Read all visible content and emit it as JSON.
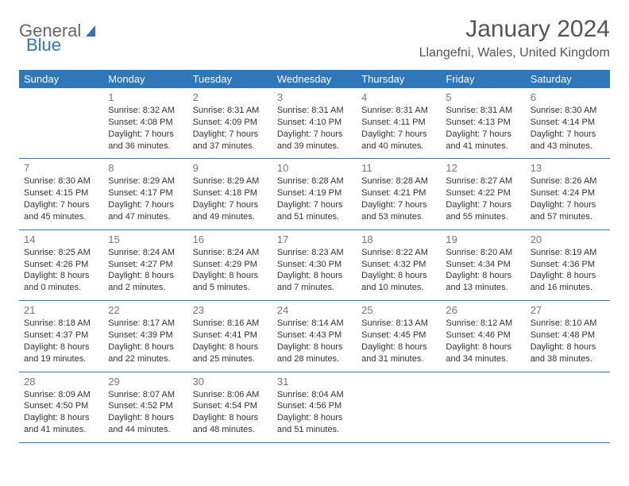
{
  "logo": {
    "text1": "General",
    "text2": "Blue"
  },
  "title": "January 2024",
  "location": "Llangefni, Wales, United Kingdom",
  "colors": {
    "header_bg": "#2e77b8",
    "text": "#333333",
    "muted": "#777777"
  },
  "dayNames": [
    "Sunday",
    "Monday",
    "Tuesday",
    "Wednesday",
    "Thursday",
    "Friday",
    "Saturday"
  ],
  "weeks": [
    [
      null,
      {
        "n": "1",
        "sr": "Sunrise: 8:32 AM",
        "ss": "Sunset: 4:08 PM",
        "dl1": "Daylight: 7 hours",
        "dl2": "and 36 minutes."
      },
      {
        "n": "2",
        "sr": "Sunrise: 8:31 AM",
        "ss": "Sunset: 4:09 PM",
        "dl1": "Daylight: 7 hours",
        "dl2": "and 37 minutes."
      },
      {
        "n": "3",
        "sr": "Sunrise: 8:31 AM",
        "ss": "Sunset: 4:10 PM",
        "dl1": "Daylight: 7 hours",
        "dl2": "and 39 minutes."
      },
      {
        "n": "4",
        "sr": "Sunrise: 8:31 AM",
        "ss": "Sunset: 4:11 PM",
        "dl1": "Daylight: 7 hours",
        "dl2": "and 40 minutes."
      },
      {
        "n": "5",
        "sr": "Sunrise: 8:31 AM",
        "ss": "Sunset: 4:13 PM",
        "dl1": "Daylight: 7 hours",
        "dl2": "and 41 minutes."
      },
      {
        "n": "6",
        "sr": "Sunrise: 8:30 AM",
        "ss": "Sunset: 4:14 PM",
        "dl1": "Daylight: 7 hours",
        "dl2": "and 43 minutes."
      }
    ],
    [
      {
        "n": "7",
        "sr": "Sunrise: 8:30 AM",
        "ss": "Sunset: 4:15 PM",
        "dl1": "Daylight: 7 hours",
        "dl2": "and 45 minutes."
      },
      {
        "n": "8",
        "sr": "Sunrise: 8:29 AM",
        "ss": "Sunset: 4:17 PM",
        "dl1": "Daylight: 7 hours",
        "dl2": "and 47 minutes."
      },
      {
        "n": "9",
        "sr": "Sunrise: 8:29 AM",
        "ss": "Sunset: 4:18 PM",
        "dl1": "Daylight: 7 hours",
        "dl2": "and 49 minutes."
      },
      {
        "n": "10",
        "sr": "Sunrise: 8:28 AM",
        "ss": "Sunset: 4:19 PM",
        "dl1": "Daylight: 7 hours",
        "dl2": "and 51 minutes."
      },
      {
        "n": "11",
        "sr": "Sunrise: 8:28 AM",
        "ss": "Sunset: 4:21 PM",
        "dl1": "Daylight: 7 hours",
        "dl2": "and 53 minutes."
      },
      {
        "n": "12",
        "sr": "Sunrise: 8:27 AM",
        "ss": "Sunset: 4:22 PM",
        "dl1": "Daylight: 7 hours",
        "dl2": "and 55 minutes."
      },
      {
        "n": "13",
        "sr": "Sunrise: 8:26 AM",
        "ss": "Sunset: 4:24 PM",
        "dl1": "Daylight: 7 hours",
        "dl2": "and 57 minutes."
      }
    ],
    [
      {
        "n": "14",
        "sr": "Sunrise: 8:25 AM",
        "ss": "Sunset: 4:26 PM",
        "dl1": "Daylight: 8 hours",
        "dl2": "and 0 minutes."
      },
      {
        "n": "15",
        "sr": "Sunrise: 8:24 AM",
        "ss": "Sunset: 4:27 PM",
        "dl1": "Daylight: 8 hours",
        "dl2": "and 2 minutes."
      },
      {
        "n": "16",
        "sr": "Sunrise: 8:24 AM",
        "ss": "Sunset: 4:29 PM",
        "dl1": "Daylight: 8 hours",
        "dl2": "and 5 minutes."
      },
      {
        "n": "17",
        "sr": "Sunrise: 8:23 AM",
        "ss": "Sunset: 4:30 PM",
        "dl1": "Daylight: 8 hours",
        "dl2": "and 7 minutes."
      },
      {
        "n": "18",
        "sr": "Sunrise: 8:22 AM",
        "ss": "Sunset: 4:32 PM",
        "dl1": "Daylight: 8 hours",
        "dl2": "and 10 minutes."
      },
      {
        "n": "19",
        "sr": "Sunrise: 8:20 AM",
        "ss": "Sunset: 4:34 PM",
        "dl1": "Daylight: 8 hours",
        "dl2": "and 13 minutes."
      },
      {
        "n": "20",
        "sr": "Sunrise: 8:19 AM",
        "ss": "Sunset: 4:36 PM",
        "dl1": "Daylight: 8 hours",
        "dl2": "and 16 minutes."
      }
    ],
    [
      {
        "n": "21",
        "sr": "Sunrise: 8:18 AM",
        "ss": "Sunset: 4:37 PM",
        "dl1": "Daylight: 8 hours",
        "dl2": "and 19 minutes."
      },
      {
        "n": "22",
        "sr": "Sunrise: 8:17 AM",
        "ss": "Sunset: 4:39 PM",
        "dl1": "Daylight: 8 hours",
        "dl2": "and 22 minutes."
      },
      {
        "n": "23",
        "sr": "Sunrise: 8:16 AM",
        "ss": "Sunset: 4:41 PM",
        "dl1": "Daylight: 8 hours",
        "dl2": "and 25 minutes."
      },
      {
        "n": "24",
        "sr": "Sunrise: 8:14 AM",
        "ss": "Sunset: 4:43 PM",
        "dl1": "Daylight: 8 hours",
        "dl2": "and 28 minutes."
      },
      {
        "n": "25",
        "sr": "Sunrise: 8:13 AM",
        "ss": "Sunset: 4:45 PM",
        "dl1": "Daylight: 8 hours",
        "dl2": "and 31 minutes."
      },
      {
        "n": "26",
        "sr": "Sunrise: 8:12 AM",
        "ss": "Sunset: 4:46 PM",
        "dl1": "Daylight: 8 hours",
        "dl2": "and 34 minutes."
      },
      {
        "n": "27",
        "sr": "Sunrise: 8:10 AM",
        "ss": "Sunset: 4:48 PM",
        "dl1": "Daylight: 8 hours",
        "dl2": "and 38 minutes."
      }
    ],
    [
      {
        "n": "28",
        "sr": "Sunrise: 8:09 AM",
        "ss": "Sunset: 4:50 PM",
        "dl1": "Daylight: 8 hours",
        "dl2": "and 41 minutes."
      },
      {
        "n": "29",
        "sr": "Sunrise: 8:07 AM",
        "ss": "Sunset: 4:52 PM",
        "dl1": "Daylight: 8 hours",
        "dl2": "and 44 minutes."
      },
      {
        "n": "30",
        "sr": "Sunrise: 8:06 AM",
        "ss": "Sunset: 4:54 PM",
        "dl1": "Daylight: 8 hours",
        "dl2": "and 48 minutes."
      },
      {
        "n": "31",
        "sr": "Sunrise: 8:04 AM",
        "ss": "Sunset: 4:56 PM",
        "dl1": "Daylight: 8 hours",
        "dl2": "and 51 minutes."
      },
      null,
      null,
      null
    ]
  ]
}
